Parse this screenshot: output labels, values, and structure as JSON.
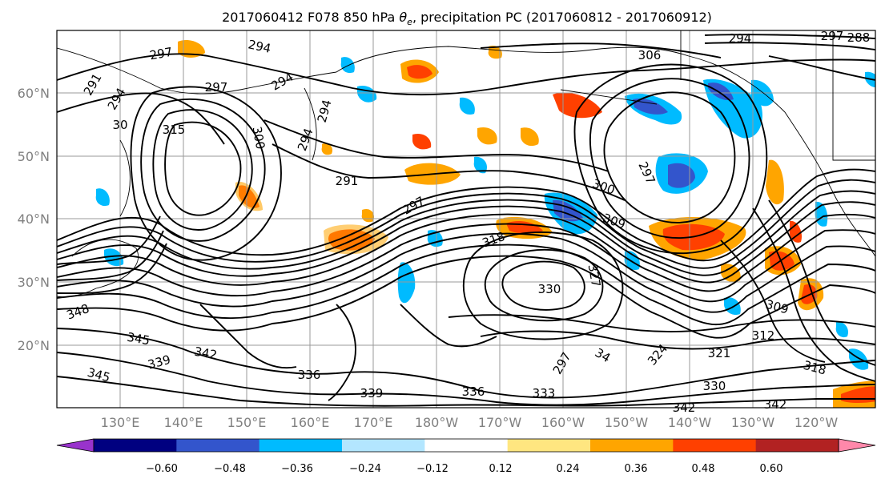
{
  "title": {
    "prefix": "2017060412 F078 850 hPa ",
    "symbol": "θ",
    "subscript": "e",
    "suffix": ", precipitation PC (2017060812 - 2017060912)"
  },
  "lat_labels": [
    "60°N",
    "50°N",
    "40°N",
    "30°N",
    "20°N"
  ],
  "lon_labels": [
    "130°E",
    "140°E",
    "150°E",
    "160°E",
    "170°E",
    "180°W",
    "170°W",
    "160°W",
    "150°W",
    "140°W",
    "130°W",
    "120°W"
  ],
  "colorbar": {
    "colors": [
      "#9933cc",
      "#000080",
      "#3355cc",
      "#00bbff",
      "#b3e6ff",
      "#ffffff",
      "#ffe680",
      "#ffa500",
      "#ff4000",
      "#b22222",
      "#ff88aa"
    ],
    "ticks": [
      "−0.60",
      "−0.48",
      "−0.36",
      "−0.24",
      "−0.12",
      "0.12",
      "0.24",
      "0.36",
      "0.48",
      "0.60"
    ]
  },
  "contour_labels": [
    {
      "text": "297"
    },
    {
      "text": "294"
    },
    {
      "text": "291"
    },
    {
      "text": "294"
    },
    {
      "text": "297"
    },
    {
      "text": "294"
    },
    {
      "text": "30"
    },
    {
      "text": "315"
    },
    {
      "text": "300"
    },
    {
      "text": "294"
    },
    {
      "text": "294"
    },
    {
      "text": "291"
    },
    {
      "text": "297"
    },
    {
      "text": "306"
    },
    {
      "text": "297"
    },
    {
      "text": "300"
    },
    {
      "text": "309"
    },
    {
      "text": "318"
    },
    {
      "text": "327"
    },
    {
      "text": "330"
    },
    {
      "text": "297"
    },
    {
      "text": "309"
    },
    {
      "text": "312"
    },
    {
      "text": "318"
    },
    {
      "text": "321"
    },
    {
      "text": "324"
    },
    {
      "text": "330"
    },
    {
      "text": "342"
    },
    {
      "text": "342"
    },
    {
      "text": "333"
    },
    {
      "text": "336"
    },
    {
      "text": "339"
    },
    {
      "text": "336"
    },
    {
      "text": "339"
    },
    {
      "text": "342"
    },
    {
      "text": "345"
    },
    {
      "text": "345"
    },
    {
      "text": "348"
    },
    {
      "text": "34"
    },
    {
      "text": "294"
    },
    {
      "text": "288"
    },
    {
      "text": "297"
    }
  ]
}
